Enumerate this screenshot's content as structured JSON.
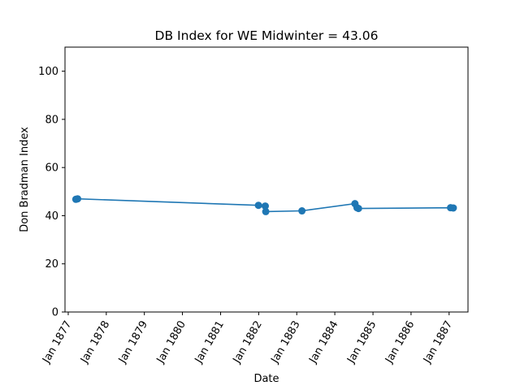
{
  "chart_data": {
    "type": "line",
    "title": "DB Index for WE Midwinter = 43.06",
    "xlabel": "Date",
    "ylabel": "Don Bradman Index",
    "xlim": [
      "1876-12-01",
      "1887-07-01"
    ],
    "ylim": [
      0,
      110
    ],
    "x_ticks": [
      {
        "date": "1877-01-01",
        "label": "Jan 1877"
      },
      {
        "date": "1878-01-01",
        "label": "Jan 1878"
      },
      {
        "date": "1879-01-01",
        "label": "Jan 1879"
      },
      {
        "date": "1880-01-01",
        "label": "Jan 1880"
      },
      {
        "date": "1881-01-01",
        "label": "Jan 1881"
      },
      {
        "date": "1882-01-01",
        "label": "Jan 1882"
      },
      {
        "date": "1883-01-01",
        "label": "Jan 1883"
      },
      {
        "date": "1884-01-01",
        "label": "Jan 1884"
      },
      {
        "date": "1885-01-01",
        "label": "Jan 1885"
      },
      {
        "date": "1886-01-01",
        "label": "Jan 1886"
      },
      {
        "date": "1887-01-01",
        "label": "Jan 1887"
      }
    ],
    "y_ticks": [
      {
        "value": 0,
        "label": "0"
      },
      {
        "value": 20,
        "label": "20"
      },
      {
        "value": 40,
        "label": "40"
      },
      {
        "value": 60,
        "label": "60"
      },
      {
        "value": 80,
        "label": "80"
      },
      {
        "value": 100,
        "label": "100"
      }
    ],
    "grid": false,
    "series": [
      {
        "color": "#1f77b4",
        "marker": "circle",
        "x": [
          "1877-03-15",
          "1877-04-01",
          "1881-12-30",
          "1882-03-05",
          "1882-03-10",
          "1883-02-20",
          "1884-07-12",
          "1884-08-01",
          "1884-08-15",
          "1887-01-15",
          "1887-02-10"
        ],
        "y": [
          46.8,
          47.0,
          44.3,
          44.0,
          41.7,
          42.0,
          45.0,
          43.3,
          43.0,
          43.3,
          43.2
        ]
      }
    ]
  }
}
